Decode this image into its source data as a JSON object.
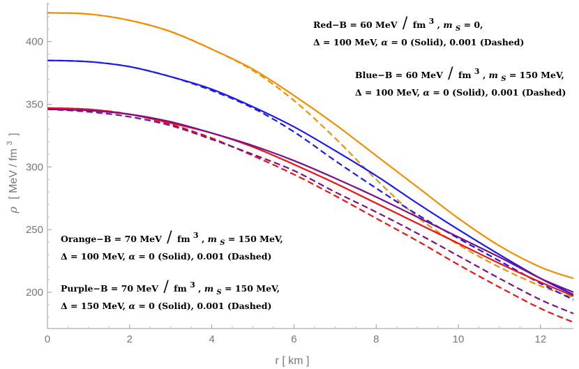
{
  "chart_data": {
    "type": "line",
    "title": "",
    "xlabel": "r [ km ]",
    "ylabel_symbol": "ρ",
    "ylabel_unit": "[ MeV / fm",
    "ylabel_exp": "3",
    "ylabel_close": "]",
    "xlim": [
      0,
      12.8
    ],
    "ylim": [
      171,
      431
    ],
    "grid": false,
    "x_ticks": [
      0,
      2,
      4,
      6,
      8,
      10,
      12
    ],
    "y_ticks": [
      200,
      250,
      300,
      350,
      400
    ],
    "series": [
      {
        "name": "Orange α=0 (Solid)",
        "color": "#f28e00",
        "dash": "solid",
        "x": [
          0,
          1,
          2,
          3,
          4,
          5,
          6,
          7,
          8,
          9,
          10,
          11,
          12,
          12.8
        ],
        "y": [
          423,
          422,
          417,
          408,
          394,
          378,
          357,
          334,
          309,
          284,
          259,
          237,
          220,
          211
        ]
      },
      {
        "name": "Orange α=0.001 (Dashed)",
        "color": "#f28e00",
        "dash": "dashed",
        "x": [
          0,
          1,
          2,
          3,
          4,
          5,
          6,
          7,
          8,
          9,
          10,
          11,
          12,
          12.8
        ],
        "y": [
          423,
          422,
          417,
          408,
          394,
          377,
          353,
          323,
          290,
          260,
          238,
          220,
          205,
          196
        ]
      },
      {
        "name": "Blue α=0 (Solid)",
        "color": "#1a1aee",
        "dash": "solid",
        "x": [
          0,
          1,
          2,
          3,
          4,
          5,
          6,
          7,
          8,
          9,
          10,
          11,
          12,
          12.8
        ],
        "y": [
          385,
          384,
          380,
          372,
          362,
          348,
          332,
          313,
          293,
          271,
          250,
          230,
          211,
          198
        ]
      },
      {
        "name": "Blue α=0.001 (Dashed)",
        "color": "#1a1aee",
        "dash": "dashed",
        "x": [
          0,
          1,
          2,
          3,
          4,
          5,
          6,
          7,
          8,
          9,
          10,
          11,
          12,
          12.8
        ],
        "y": [
          385,
          384,
          380,
          372,
          361,
          347,
          328,
          305,
          283,
          262,
          243,
          225,
          207,
          194
        ]
      },
      {
        "name": "Red α=0 (Solid)",
        "color": "#ee1111",
        "dash": "solid",
        "x": [
          0,
          1,
          2,
          3,
          4,
          5,
          6,
          7,
          8,
          9,
          10,
          11,
          12,
          12.8
        ],
        "y": [
          347,
          346,
          342,
          335,
          327,
          316,
          302,
          287,
          271,
          255,
          239,
          223,
          208,
          197
        ]
      },
      {
        "name": "Red α=0.001 (Dashed)",
        "color": "#ee1111",
        "dash": "dashed",
        "x": [
          0,
          1,
          2,
          3,
          4,
          5,
          6,
          7,
          8,
          9,
          10,
          11,
          12,
          12.8
        ],
        "y": [
          347,
          346,
          342,
          334,
          323,
          309,
          294,
          277,
          259,
          241,
          222,
          204,
          187,
          176
        ]
      },
      {
        "name": "Purple α=0 (Solid)",
        "color": "#7a0f8e",
        "dash": "solid",
        "x": [
          0,
          1,
          2,
          3,
          4,
          5,
          6,
          7,
          8,
          9,
          10,
          11,
          12,
          12.8
        ],
        "y": [
          346,
          345,
          342,
          336,
          327,
          317,
          305,
          291,
          276,
          260,
          244,
          228,
          211,
          200
        ]
      },
      {
        "name": "Purple α=0.001 (Dashed)",
        "color": "#7a0f8e",
        "dash": "dashed",
        "x": [
          0,
          1,
          2,
          3,
          4,
          5,
          6,
          7,
          8,
          9,
          10,
          11,
          12,
          12.8
        ],
        "y": [
          346,
          344,
          340,
          333,
          322,
          310,
          297,
          280,
          264,
          247,
          229,
          211,
          194,
          183
        ]
      }
    ],
    "annotations": [
      {
        "name": "annotation-red",
        "anchor": "top-center",
        "line1": {
          "prefix": "Red−B = 60 MeV",
          "unit": "fm",
          "exp": "3",
          "ms_rest": " = 0,"
        },
        "line2": {
          "delta": "Δ = 100 MeV, ",
          "alpha": "α",
          "rest": " = 0 (Solid), 0.001 (Dashed)"
        }
      },
      {
        "name": "annotation-blue",
        "anchor": "upper-right",
        "line1": {
          "prefix": "Blue−B = 60 MeV",
          "unit": "fm",
          "exp": "3",
          "ms_rest": " = 150 MeV,"
        },
        "line2": {
          "delta": "Δ = 100 MeV, ",
          "alpha": "α",
          "rest": " = 0 (Solid), 0.001 (Dashed)"
        }
      },
      {
        "name": "annotation-orange",
        "anchor": "lower-left",
        "line1": {
          "prefix": "Orange−B = 70 MeV",
          "unit": "fm",
          "exp": "3",
          "ms_rest": " = 150 MeV,"
        },
        "line2": {
          "delta": "Δ = 100 MeV, ",
          "alpha": "α",
          "rest": " = 0 (Solid), 0.001 (Dashed)"
        }
      },
      {
        "name": "annotation-purple",
        "anchor": "bottom-left",
        "line1": {
          "prefix": "Purple−B = 70 MeV",
          "unit": "fm",
          "exp": "3",
          "ms_rest": " = 150 MeV,"
        },
        "line2": {
          "delta": "Δ = 150 MeV, ",
          "alpha": "α",
          "rest": " = 0 (Solid), 0.001 (Dashed)"
        }
      }
    ],
    "ms_symbol": "m",
    "ms_subscript": "S",
    "slash": "/"
  }
}
